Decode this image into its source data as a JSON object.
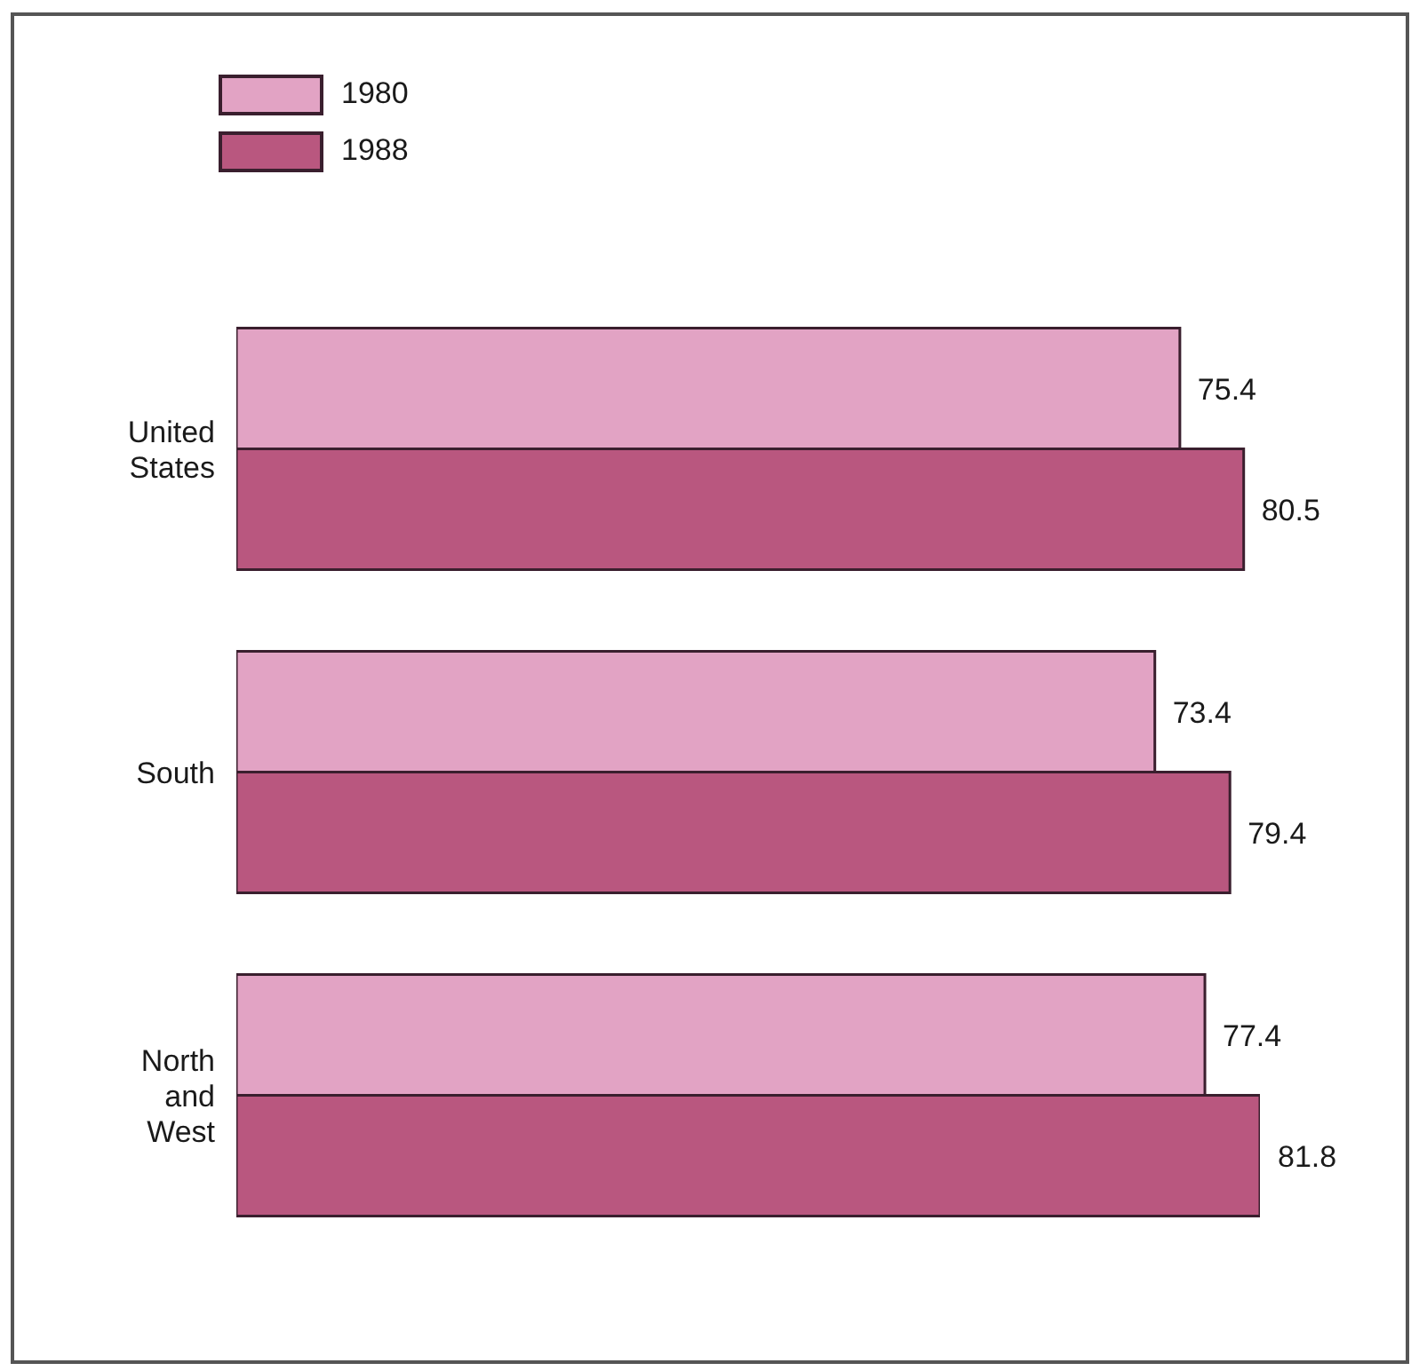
{
  "chart_data": {
    "type": "bar",
    "orientation": "horizontal",
    "categories": [
      "United States",
      "South",
      "North and West"
    ],
    "series": [
      {
        "name": "1980",
        "color": "#e2a3c4",
        "values": [
          75.4,
          73.4,
          77.4
        ]
      },
      {
        "name": "1988",
        "color": "#b9577f",
        "values": [
          80.5,
          79.4,
          81.8
        ]
      }
    ],
    "data_labels": true,
    "legend": "top left",
    "tick_labels": "y"
  }
}
